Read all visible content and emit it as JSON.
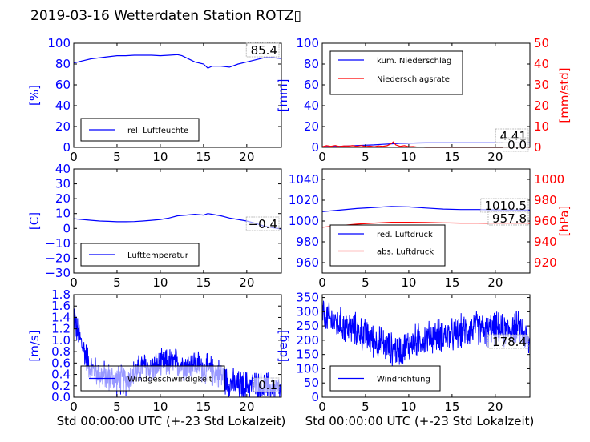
{
  "figure": {
    "title": "2019-03-16 Wetterdaten Station ROTZ",
    "title_glyph": "▯"
  },
  "colors": {
    "primary": "#0000ff",
    "secondary": "#ff0000",
    "wind_fill": "#8080ff"
  },
  "chart_data": [
    {
      "type": "line",
      "id": "humidity",
      "ylabel": "[%]",
      "xlim": [
        0,
        24
      ],
      "ylim": [
        0,
        100
      ],
      "xticks": [
        0,
        5,
        10,
        15,
        20
      ],
      "yticks": [
        0,
        20,
        40,
        60,
        80,
        100
      ],
      "grid": false,
      "legend": "lower-left",
      "current_value": "85.4",
      "series": [
        {
          "name": "rel. Luftfeuchte",
          "color": "#0000ff",
          "x": [
            0,
            0.5,
            1,
            2,
            3,
            4,
            5,
            6,
            7,
            8,
            9,
            10,
            11,
            12,
            12.5,
            13,
            14,
            15,
            15.5,
            16,
            17,
            18,
            19,
            20,
            21,
            22,
            23,
            24
          ],
          "y": [
            81,
            82,
            83,
            85,
            86,
            87,
            88,
            88,
            88.5,
            88.5,
            88.5,
            88,
            88.5,
            89,
            88,
            86,
            82,
            80,
            76,
            78,
            78,
            77,
            80,
            82,
            84,
            86,
            86,
            85.4
          ]
        }
      ]
    },
    {
      "type": "line",
      "id": "precipitation",
      "ylabel": "[mm]",
      "ylabel_right": "[mm/std]",
      "xlim": [
        0,
        24
      ],
      "ylim": [
        0,
        100
      ],
      "ylim_right": [
        0,
        50
      ],
      "xticks": [
        0,
        5,
        10,
        15,
        20
      ],
      "yticks": [
        0,
        20,
        40,
        60,
        80,
        100
      ],
      "yticks_right": [
        0,
        10,
        20,
        30,
        40,
        50
      ],
      "grid": false,
      "legend": "top-left",
      "current_values": [
        "4.41",
        "0.0"
      ],
      "series": [
        {
          "name": "kum. Niederschlag",
          "axis": "left",
          "color": "#0000ff",
          "x": [
            0,
            2,
            4,
            6,
            7,
            8,
            9,
            10,
            11,
            12,
            14,
            16,
            18,
            20,
            22,
            24
          ],
          "y": [
            0.5,
            1,
            1.8,
            2.4,
            2.9,
            3.4,
            3.9,
            4.1,
            4.2,
            4.3,
            4.4,
            4.41,
            4.41,
            4.41,
            4.41,
            4.41
          ]
        },
        {
          "name": "Niederschlagsrate",
          "axis": "right",
          "color": "#ff0000",
          "x": [
            0,
            0.5,
            1,
            1.5,
            2,
            2.5,
            3,
            3.5,
            4,
            4.5,
            5,
            5.5,
            6,
            6.5,
            7,
            7.5,
            8,
            8.2,
            8.5,
            9,
            9.5,
            10,
            10.5,
            11,
            12,
            14,
            16,
            18,
            20,
            22,
            24
          ],
          "y": [
            0.3,
            0.8,
            0.5,
            0.9,
            0.4,
            0.7,
            0.6,
            0.8,
            0.5,
            0.9,
            0.4,
            0.6,
            0.3,
            0.7,
            0.5,
            0.8,
            1.8,
            2.6,
            1.2,
            0.5,
            0.8,
            0.3,
            0.4,
            0.1,
            0,
            0,
            0,
            0,
            0,
            0,
            0
          ]
        }
      ]
    },
    {
      "type": "line",
      "id": "temperature",
      "ylabel": "[C]",
      "xlim": [
        0,
        24
      ],
      "ylim": [
        -30,
        40
      ],
      "xticks": [
        0,
        5,
        10,
        15,
        20
      ],
      "yticks": [
        -30,
        -20,
        -10,
        0,
        10,
        20,
        30,
        40
      ],
      "grid": false,
      "legend": "lower-left",
      "current_value": "-0.4",
      "series": [
        {
          "name": "Lufttemperatur",
          "color": "#0000ff",
          "x": [
            0,
            1,
            2,
            3,
            4,
            5,
            6,
            7,
            8,
            9,
            10,
            11,
            12,
            13,
            14,
            15,
            15.5,
            16,
            17,
            18,
            19,
            20,
            21,
            22,
            23,
            24
          ],
          "y": [
            6.5,
            6,
            5.5,
            5,
            4.8,
            4.5,
            4.5,
            4.6,
            5,
            5.5,
            6,
            7,
            8.5,
            9,
            9.5,
            9,
            10,
            9.5,
            8.5,
            7,
            6,
            5,
            3.5,
            1.5,
            0.5,
            -0.4
          ]
        }
      ]
    },
    {
      "type": "line",
      "id": "pressure",
      "ylabel_right": "[hPa]",
      "xlim": [
        0,
        24
      ],
      "ylim": [
        950,
        1050
      ],
      "ylim_right": [
        910,
        1010
      ],
      "xticks": [
        0,
        5,
        10,
        15,
        20
      ],
      "yticks": [
        960,
        980,
        1000,
        1020,
        1040
      ],
      "yticks_right": [
        920,
        940,
        960,
        980,
        1000
      ],
      "grid": false,
      "legend": "lower-left",
      "current_values": [
        "1010.5",
        "957.8"
      ],
      "series": [
        {
          "name": "red. Luftdruck",
          "axis": "left",
          "color": "#0000ff",
          "x": [
            0,
            2,
            4,
            6,
            8,
            10,
            12,
            14,
            16,
            18,
            20,
            22,
            24
          ],
          "y": [
            1009,
            1010.5,
            1012,
            1013,
            1014,
            1013.5,
            1012.5,
            1011.5,
            1011,
            1011,
            1010.8,
            1010.6,
            1010.5
          ]
        },
        {
          "name": "abs. Luftdruck",
          "axis": "right",
          "color": "#ff0000",
          "x": [
            0,
            2,
            4,
            6,
            8,
            10,
            12,
            14,
            16,
            18,
            20,
            22,
            24
          ],
          "y": [
            954,
            955.5,
            957,
            958,
            958.8,
            958.8,
            958.5,
            958.2,
            958,
            957.9,
            957.8,
            957.8,
            957.8
          ]
        }
      ]
    },
    {
      "type": "line",
      "id": "windspeed",
      "ylabel": "[m/s]",
      "xlabel": "Std 00:00:00 UTC (+-23 Std Lokalzeit)",
      "xlim": [
        0,
        24
      ],
      "ylim": [
        0,
        1.8
      ],
      "xticks": [
        0,
        5,
        10,
        15,
        20
      ],
      "yticks": [
        0.0,
        0.2,
        0.4,
        0.6,
        0.8,
        1.0,
        1.2,
        1.4,
        1.6,
        1.8
      ],
      "ytick_labels": [
        "0.0",
        "0.2",
        "0.4",
        "0.6",
        "0.8",
        "1.0",
        "1.2",
        "1.4",
        "1.6",
        "1.8"
      ],
      "grid": false,
      "legend": "lower-left",
      "current_value": "0.1",
      "noise": 0.32,
      "series": [
        {
          "name": "Windgeschwindigkeit",
          "color": "#0000ff",
          "x": [
            0,
            0.3,
            1,
            2,
            3,
            4,
            5,
            6,
            7,
            8,
            9,
            10,
            11,
            12,
            13,
            14,
            15,
            16,
            17,
            18,
            19,
            20,
            21,
            22,
            23,
            24
          ],
          "y": [
            1.5,
            1.2,
            0.9,
            0.5,
            0.4,
            0.35,
            0.3,
            0.3,
            0.4,
            0.55,
            0.5,
            0.55,
            0.6,
            0.6,
            0.55,
            0.6,
            0.5,
            0.45,
            0.4,
            0.25,
            0.2,
            0.2,
            0.2,
            0.18,
            0.15,
            0.1
          ]
        }
      ]
    },
    {
      "type": "line",
      "id": "winddirection",
      "ylabel": "[deg]",
      "xlabel": "Std 00:00:00 UTC (+-23 Std Lokalzeit)",
      "xlim": [
        0,
        24
      ],
      "ylim": [
        0,
        360
      ],
      "xticks": [
        0,
        5,
        10,
        15,
        20
      ],
      "yticks": [
        0,
        50,
        100,
        150,
        200,
        250,
        300,
        350
      ],
      "grid": false,
      "legend": "lower-left",
      "current_value": "178.4",
      "noise": 70,
      "series": [
        {
          "name": "Windrichtung",
          "color": "#0000ff",
          "x": [
            0,
            1,
            2,
            3,
            4,
            5,
            6,
            7,
            8,
            9,
            10,
            11,
            12,
            13,
            14,
            15,
            16,
            17,
            18,
            19,
            20,
            21,
            22,
            23,
            24
          ],
          "y": [
            290,
            270,
            255,
            245,
            235,
            215,
            200,
            185,
            170,
            165,
            185,
            200,
            205,
            215,
            220,
            215,
            230,
            235,
            245,
            230,
            240,
            230,
            245,
            240,
            178.4
          ]
        }
      ]
    }
  ]
}
